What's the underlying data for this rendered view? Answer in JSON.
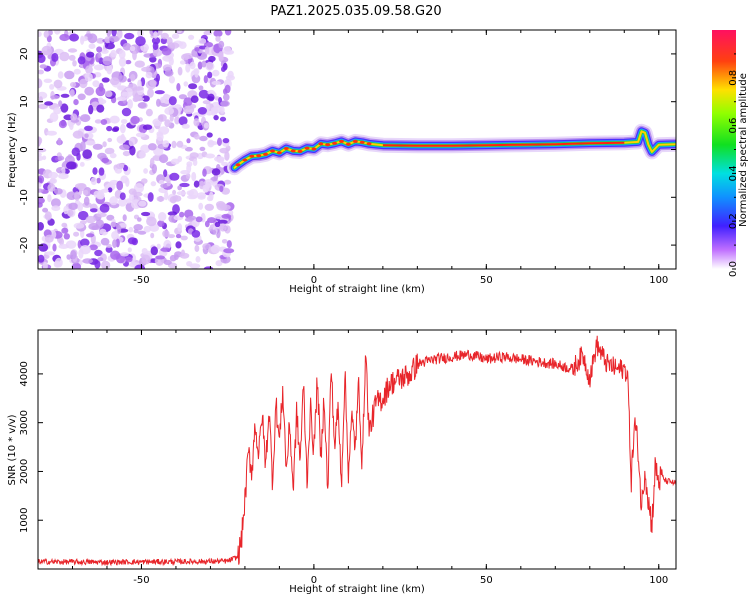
{
  "title": "PAZ1.2025.035.09.58.G20",
  "chart_data": [
    {
      "type": "heatmap",
      "xlabel": "Height of straight line (km)",
      "ylabel": "Frequency (Hz)",
      "xlim": [
        -80,
        105
      ],
      "ylim": [
        -25,
        25
      ],
      "xticks": [
        "-50",
        "0",
        "50",
        "100"
      ],
      "yticks": [
        "-20",
        "-10",
        "0",
        "10",
        "20"
      ],
      "noise_region_x": [
        -80,
        -24
      ],
      "ridge": {
        "x": [
          -23,
          -22,
          -20,
          -18,
          -16,
          -14,
          -12,
          -10,
          -8,
          -6,
          -4,
          -2,
          0,
          2,
          4,
          6,
          8,
          10,
          12,
          14,
          16,
          20,
          30,
          40,
          50,
          60,
          70,
          80,
          90,
          94,
          95,
          96,
          97,
          98,
          100,
          105
        ],
        "freq": [
          -3.8,
          -3.2,
          -2.2,
          -1.4,
          -1.3,
          -1.0,
          -0.3,
          -0.7,
          0.2,
          -0.3,
          -0.4,
          0.3,
          0.1,
          1.2,
          1.0,
          1.3,
          1.7,
          1.1,
          1.7,
          1.5,
          1.2,
          0.9,
          0.8,
          0.8,
          0.9,
          1.0,
          1.1,
          1.3,
          1.4,
          1.6,
          3.8,
          3.5,
          1.0,
          -0.5,
          1.0,
          1.1
        ]
      },
      "colorbar": {
        "label": "Normalized spectral amplitude",
        "ticks": [
          "0.0",
          "0.2",
          "0.4",
          "0.6",
          "0.8"
        ],
        "range": [
          0,
          1
        ]
      }
    },
    {
      "type": "line",
      "xlabel": "Height of straight line (km)",
      "ylabel": "SNR (10 * v/v)",
      "xlim": [
        -80,
        105
      ],
      "ylim": [
        0,
        4900
      ],
      "xticks": [
        "-50",
        "0",
        "50",
        "100"
      ],
      "yticks": [
        "1000",
        "2000",
        "3000",
        "4000"
      ],
      "color": "#e8252a",
      "series": [
        {
          "x": [
            -80,
            -60,
            -40,
            -25,
            -22,
            -21,
            -20,
            -19,
            -18,
            -17,
            -16,
            -15,
            -14,
            -13,
            -12,
            -11,
            -10,
            -9,
            -8,
            -7,
            -6,
            -5,
            -4,
            -3,
            -2,
            -1,
            0,
            1,
            2,
            3,
            4,
            5,
            6,
            7,
            8,
            9,
            10,
            11,
            12,
            13,
            14,
            15,
            16,
            18,
            20,
            22,
            25,
            28,
            30,
            35,
            40,
            45,
            50,
            55,
            60,
            65,
            70,
            75,
            78,
            80,
            82,
            85,
            88,
            90,
            91,
            92,
            93,
            94,
            95,
            96,
            97,
            98,
            99,
            100,
            101,
            102,
            103,
            105
          ],
          "y": [
            150,
            140,
            150,
            160,
            250,
            600,
            1400,
            2400,
            2000,
            3000,
            2300,
            3200,
            2100,
            3300,
            1800,
            3400,
            2600,
            3700,
            2000,
            3000,
            1600,
            3200,
            2200,
            3800,
            1800,
            3300,
            2400,
            3900,
            2200,
            3600,
            1500,
            4200,
            2500,
            3300,
            1800,
            4000,
            2000,
            3100,
            2500,
            3800,
            2100,
            4500,
            2800,
            3400,
            3500,
            3800,
            3900,
            4000,
            4200,
            4300,
            4350,
            4400,
            4300,
            4350,
            4300,
            4250,
            4200,
            4100,
            4400,
            3900,
            4600,
            4200,
            4100,
            4100,
            4000,
            1800,
            3000,
            2500,
            1200,
            2100,
            1400,
            900,
            2100,
            1800,
            1900,
            1800,
            1800,
            1750
          ]
        }
      ]
    }
  ]
}
